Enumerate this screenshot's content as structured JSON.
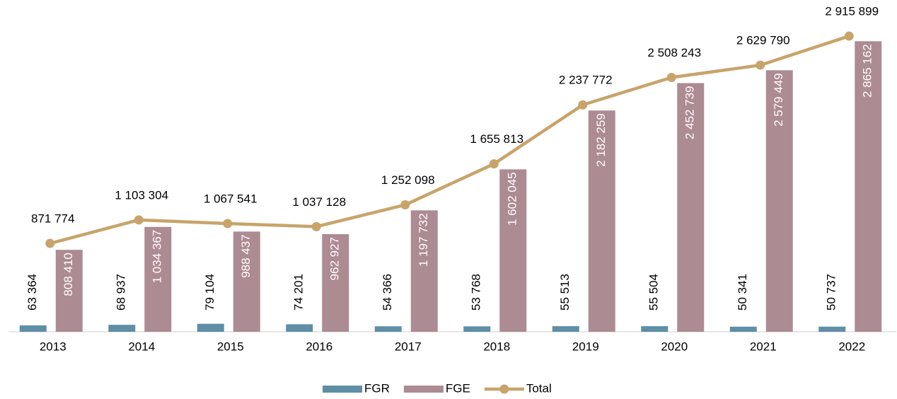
{
  "chart_data": {
    "type": "bar_line",
    "categories": [
      "2013",
      "2014",
      "2015",
      "2016",
      "2017",
      "2018",
      "2019",
      "2020",
      "2021",
      "2022"
    ],
    "series": [
      {
        "name": "FGR",
        "color": "#5e8fa6",
        "type": "bar",
        "values": [
          63364,
          68937,
          79104,
          74201,
          54366,
          53768,
          55513,
          55504,
          50341,
          50737
        ],
        "value_labels": [
          "63 364",
          "68 937",
          "79 104",
          "74 201",
          "54 366",
          "53 768",
          "55 513",
          "55 504",
          "50 341",
          "50 737"
        ]
      },
      {
        "name": "FGE",
        "color": "#ad8b93",
        "type": "bar",
        "values": [
          808410,
          1034367,
          988437,
          962927,
          1197732,
          1602045,
          2182259,
          2452739,
          2579449,
          2865162
        ],
        "value_labels": [
          "808 410",
          "1 034 367",
          "988 437",
          "962 927",
          "1 197 732",
          "1 602 045",
          "2 182 259",
          "2 452 739",
          "2 579 449",
          "2 865 162"
        ]
      },
      {
        "name": "Total",
        "color": "#c8a46b",
        "type": "line",
        "values": [
          871774,
          1103304,
          1067541,
          1037128,
          1252098,
          1655813,
          2237772,
          2508243,
          2629790,
          2915899
        ],
        "value_labels": [
          "871 774",
          "1 103 304",
          "1 067 541",
          "1 037 128",
          "1 252 098",
          "1 655 813",
          "2 237 772",
          "2 508 243",
          "2 629 790",
          "2 915 899"
        ]
      }
    ],
    "ylim": [
      0,
      3000000
    ],
    "legend": "bottom"
  }
}
